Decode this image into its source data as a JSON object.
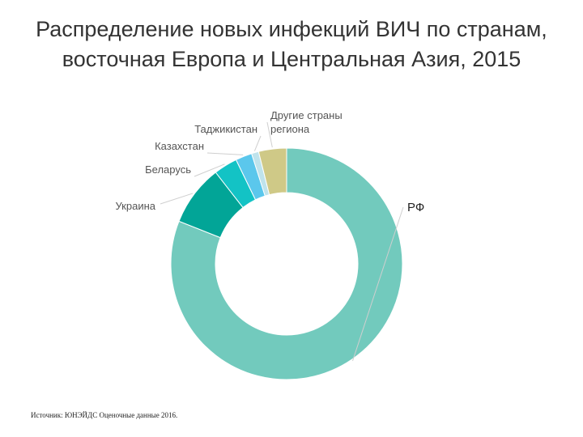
{
  "title_line1": "Распределение новых инфекций ВИЧ по странам,",
  "title_line2": "восточная Европа и Центральная Азия, 2015",
  "source": "Источник: ЮНЭЙДС Оценочные данные 2016.",
  "chart_data": {
    "type": "pie",
    "subtype": "donut",
    "title": "Распределение новых инфекций ВИЧ по странам, восточная Европа и Центральная Азия, 2015",
    "legend": "none",
    "slices": [
      {
        "label": "РФ",
        "value": 81.0,
        "color": "#72cabd"
      },
      {
        "label": "Украина",
        "value": 8.5,
        "color": "#02a597"
      },
      {
        "label": "Беларусь",
        "value": 3.3,
        "color": "#13c3c5"
      },
      {
        "label": "Казахстан",
        "value": 2.3,
        "color": "#5bc7ec"
      },
      {
        "label": "Таджикистан",
        "value": 1.0,
        "color": "#bfe3ec"
      },
      {
        "label": "Другие страны региона",
        "value": 3.9,
        "color": "#cfc987"
      }
    ],
    "label_lines": [
      [
        "РФ"
      ],
      [
        "Украина"
      ],
      [
        "Беларусь"
      ],
      [
        "Казахстан"
      ],
      [
        "Таджикистан"
      ],
      [
        "Другие страны",
        "региона"
      ]
    ]
  }
}
